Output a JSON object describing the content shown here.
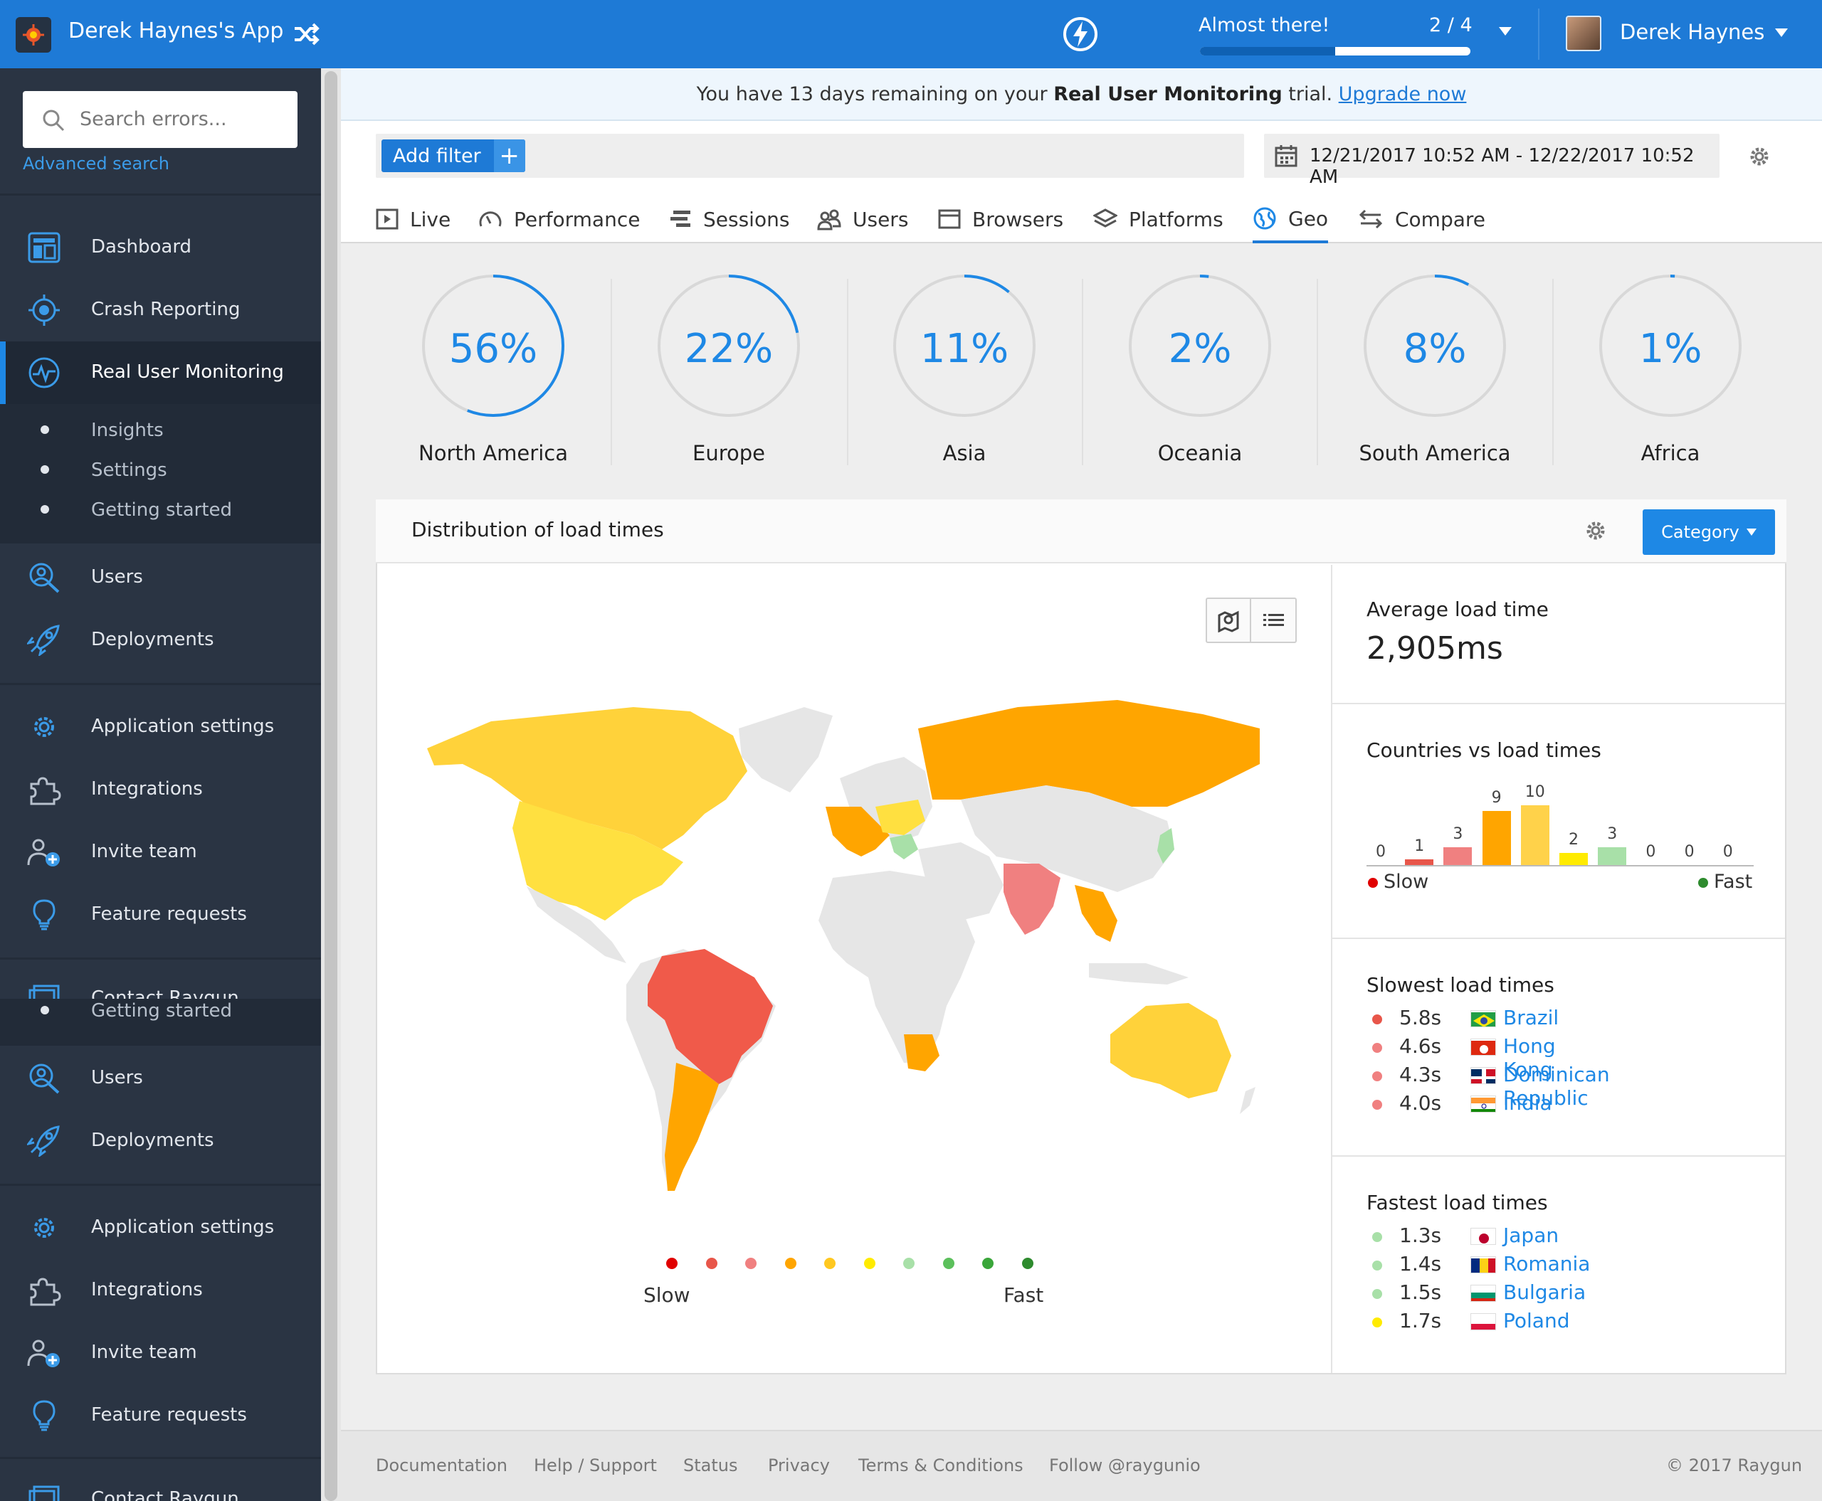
{
  "app": {
    "name": "Derek Haynes's App"
  },
  "sidebar": {
    "search_placeholder": "Search errors...",
    "advanced_search": "Advanced search",
    "items": [
      {
        "label": "Dashboard",
        "icon": "dashboard-icon"
      },
      {
        "label": "Crash Reporting",
        "icon": "bug-icon"
      },
      {
        "label": "Real User Monitoring",
        "icon": "pulse-icon",
        "active": true
      },
      {
        "label": "Users",
        "icon": "user-search-icon"
      },
      {
        "label": "Deployments",
        "icon": "rocket-icon"
      },
      {
        "label": "Application settings",
        "icon": "gear-icon"
      },
      {
        "label": "Integrations",
        "icon": "puzzle-icon"
      },
      {
        "label": "Invite team",
        "icon": "add-user-icon"
      },
      {
        "label": "Feature requests",
        "icon": "lightbulb-icon"
      },
      {
        "label": "Contact Raygun",
        "icon": "contact-icon"
      }
    ],
    "sub_items": [
      "Insights",
      "Settings",
      "Getting started"
    ]
  },
  "topbar": {
    "progress_label": "Almost there!",
    "progress_count": "2 / 4",
    "progress_fraction": 0.5,
    "user_name": "Derek Haynes"
  },
  "banner": {
    "pre": "You have 13 days remaining on your ",
    "bold": "Real User Monitoring",
    "post": " trial. ",
    "link": "Upgrade now"
  },
  "filter": {
    "add_filter": "Add filter",
    "date_range": "12/21/2017 10:52 AM - 12/22/2017 10:52 AM"
  },
  "tabs": [
    {
      "label": "Live",
      "icon": "play-icon"
    },
    {
      "label": "Performance",
      "icon": "speedometer-icon"
    },
    {
      "label": "Sessions",
      "icon": "sessions-icon"
    },
    {
      "label": "Users",
      "icon": "users-icon"
    },
    {
      "label": "Browsers",
      "icon": "browser-icon"
    },
    {
      "label": "Platforms",
      "icon": "layers-icon"
    },
    {
      "label": "Geo",
      "icon": "globe-icon",
      "active": true
    },
    {
      "label": "Compare",
      "icon": "compare-icon"
    }
  ],
  "regions": [
    {
      "name": "North America",
      "percent": "56%",
      "value": 56
    },
    {
      "name": "Europe",
      "percent": "22%",
      "value": 22
    },
    {
      "name": "Asia",
      "percent": "11%",
      "value": 11
    },
    {
      "name": "Oceania",
      "percent": "2%",
      "value": 2
    },
    {
      "name": "South America",
      "percent": "8%",
      "value": 8
    },
    {
      "name": "Africa",
      "percent": "1%",
      "value": 1
    }
  ],
  "panel": {
    "title": "Distribution of load times",
    "category_button": "Category",
    "legend_slow": "Slow",
    "legend_fast": "Fast",
    "legend_colors": [
      "#e00000",
      "#e8564a",
      "#f08080",
      "#ffa500",
      "#ffc820",
      "#ffeb00",
      "#a8e0a8",
      "#5cc05c",
      "#3aa63a",
      "#2e8b2e"
    ]
  },
  "avg_load": {
    "title": "Average load time",
    "value": "2,905ms"
  },
  "countries_chart": {
    "title": "Countries vs load times",
    "slow_label": "Slow",
    "fast_label": "Fast",
    "chart_data": {
      "type": "bar",
      "values": [
        0,
        1,
        3,
        9,
        10,
        2,
        3,
        0,
        0,
        0
      ],
      "colors": [
        "#e00000",
        "#e8564a",
        "#f08080",
        "#ffa500",
        "#ffd24a",
        "#ffeb00",
        "#a8e0a8",
        "#5cc05c",
        "#3aa63a",
        "#2e8b2e"
      ]
    }
  },
  "slowest": {
    "title": "Slowest load times",
    "rows": [
      {
        "time": "5.8s",
        "country": "Brazil",
        "color": "#e8564a"
      },
      {
        "time": "4.6s",
        "country": "Hong Kong",
        "color": "#f08080"
      },
      {
        "time": "4.3s",
        "country": "Dominican Republic",
        "color": "#f08080"
      },
      {
        "time": "4.0s",
        "country": "India",
        "color": "#f08080"
      }
    ]
  },
  "fastest": {
    "title": "Fastest load times",
    "rows": [
      {
        "time": "1.3s",
        "country": "Japan",
        "color": "#a8e0a8"
      },
      {
        "time": "1.4s",
        "country": "Romania",
        "color": "#a8e0a8"
      },
      {
        "time": "1.5s",
        "country": "Bulgaria",
        "color": "#a8e0a8"
      },
      {
        "time": "1.7s",
        "country": "Poland",
        "color": "#ffeb00"
      }
    ]
  },
  "footer": {
    "links": [
      "Documentation",
      "Help / Support",
      "Status",
      "Privacy",
      "Terms & Conditions",
      "Follow @raygunio"
    ],
    "copyright": "© 2017 Raygun"
  }
}
